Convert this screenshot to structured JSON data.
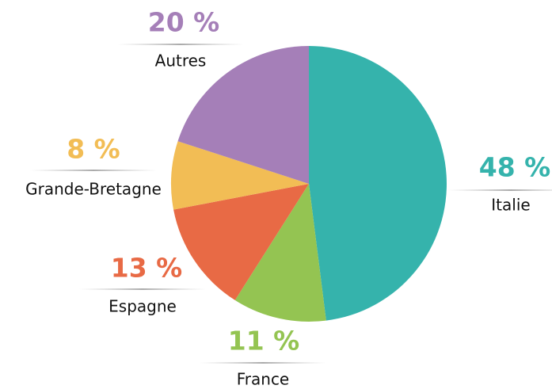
{
  "chart_data": {
    "type": "pie",
    "categories": [
      "Italie",
      "France",
      "Espagne",
      "Grande-Bretagne",
      "Autres"
    ],
    "values": [
      48,
      11,
      13,
      8,
      20
    ],
    "value_labels": [
      "48 %",
      "11 %",
      "13 %",
      "8 %",
      "20 %"
    ],
    "colors": [
      "#35b3ac",
      "#94c452",
      "#e86a45",
      "#f2bd55",
      "#a57fb8"
    ]
  }
}
